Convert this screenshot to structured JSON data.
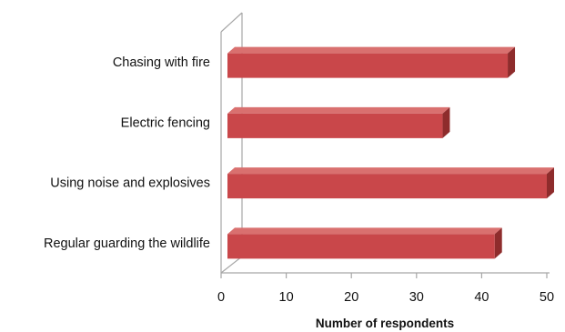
{
  "chart_data": {
    "type": "bar",
    "orientation": "horizontal",
    "style": "3d",
    "categories": [
      "Chasing with fire",
      "Electric fencing",
      "Using noise and explosives",
      "Regular guarding the wildlife"
    ],
    "values": [
      44,
      34,
      50,
      42
    ],
    "title": "",
    "xlabel": "Number of respondents",
    "ylabel": "",
    "xlim": [
      0,
      50
    ],
    "xticks": [
      "0",
      "10",
      "20",
      "30",
      "40",
      "50"
    ],
    "grid": false,
    "legend": "none",
    "colors": {
      "bar_front": "#c9474a",
      "bar_top": "#d9706f",
      "bar_end": "#8e2c2c",
      "axis": "#a6a6a6"
    }
  }
}
